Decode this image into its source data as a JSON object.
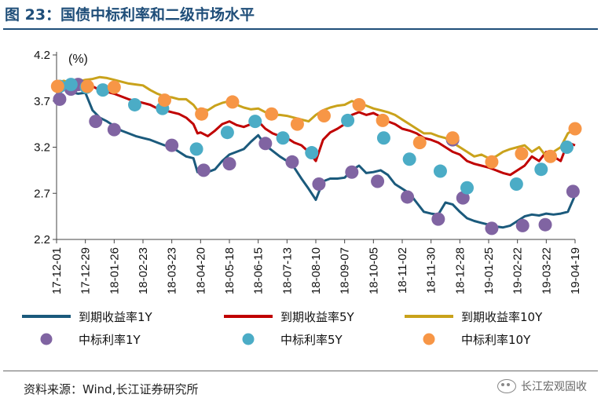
{
  "header": {
    "title": "图 23：国债中标利率和二级市场水平"
  },
  "footer": {
    "source": "资料来源：Wind,长江证券研究所",
    "watermark": "长江宏观固收"
  },
  "colors": {
    "y1": "#1b5a7c",
    "y5": "#c00000",
    "y10": "#c9a21b",
    "a1": "#8064a2",
    "a5": "#4bacc6",
    "a10": "#f79646"
  },
  "chart_data": {
    "type": "line",
    "unit": "(%)",
    "ylim": [
      2.2,
      4.2
    ],
    "yticks": [
      2.2,
      2.7,
      3.2,
      3.7,
      4.2
    ],
    "xlim": [
      "2017-12-01",
      "2019-04-19"
    ],
    "xticks": [
      "17-12-01",
      "17-12-29",
      "18-01-26",
      "18-02-23",
      "18-03-23",
      "18-04-20",
      "18-05-18",
      "18-06-15",
      "18-07-13",
      "18-08-10",
      "18-09-07",
      "18-10-05",
      "18-11-02",
      "18-11-30",
      "18-12-28",
      "19-01-25",
      "19-02-22",
      "19-03-22",
      "19-04-19"
    ],
    "grid": false,
    "legend_position": "bottom",
    "series": [
      {
        "name": "到期收益率1Y",
        "kind": "line",
        "color": "#1b5a7c",
        "x": [
          "2017-12-01",
          "2017-12-08",
          "2017-12-15",
          "2017-12-22",
          "2017-12-29",
          "2018-01-05",
          "2018-01-12",
          "2018-01-19",
          "2018-01-26",
          "2018-02-02",
          "2018-02-09",
          "2018-02-16",
          "2018-02-23",
          "2018-03-02",
          "2018-03-09",
          "2018-03-16",
          "2018-03-23",
          "2018-03-30",
          "2018-04-06",
          "2018-04-13",
          "2018-04-17",
          "2018-04-20",
          "2018-04-27",
          "2018-05-04",
          "2018-05-11",
          "2018-05-18",
          "2018-05-25",
          "2018-06-01",
          "2018-06-08",
          "2018-06-15",
          "2018-06-22",
          "2018-06-29",
          "2018-07-06",
          "2018-07-13",
          "2018-07-20",
          "2018-07-27",
          "2018-08-03",
          "2018-08-10",
          "2018-08-17",
          "2018-08-24",
          "2018-08-31",
          "2018-09-07",
          "2018-09-14",
          "2018-09-21",
          "2018-09-28",
          "2018-10-05",
          "2018-10-12",
          "2018-10-19",
          "2018-10-26",
          "2018-11-02",
          "2018-11-09",
          "2018-11-16",
          "2018-11-23",
          "2018-11-30",
          "2018-12-07",
          "2018-12-14",
          "2018-12-21",
          "2018-12-28",
          "2019-01-04",
          "2019-01-11",
          "2019-01-18",
          "2019-01-25",
          "2019-02-01",
          "2019-02-08",
          "2019-02-15",
          "2019-02-22",
          "2019-03-01",
          "2019-03-08",
          "2019-03-15",
          "2019-03-22",
          "2019-03-29",
          "2019-04-05",
          "2019-04-12",
          "2019-04-19"
        ],
        "values": [
          3.72,
          3.85,
          3.8,
          3.78,
          3.79,
          3.6,
          3.52,
          3.48,
          3.43,
          3.38,
          3.35,
          3.32,
          3.3,
          3.28,
          3.25,
          3.22,
          3.2,
          3.15,
          3.1,
          3.08,
          2.93,
          2.94,
          2.93,
          2.96,
          3.05,
          3.12,
          3.15,
          3.18,
          3.26,
          3.33,
          3.22,
          3.16,
          3.1,
          3.05,
          2.98,
          2.86,
          2.75,
          2.63,
          2.83,
          2.86,
          2.86,
          2.87,
          2.95,
          3.0,
          2.92,
          2.93,
          2.95,
          2.9,
          2.8,
          2.75,
          2.7,
          2.6,
          2.5,
          2.48,
          2.47,
          2.6,
          2.58,
          2.5,
          2.43,
          2.4,
          2.38,
          2.36,
          2.34,
          2.33,
          2.35,
          2.4,
          2.45,
          2.47,
          2.46,
          2.48,
          2.47,
          2.48,
          2.5,
          2.68
        ]
      },
      {
        "name": "到期收益率5Y",
        "kind": "line",
        "color": "#c00000",
        "x": [
          "2017-12-01",
          "2017-12-08",
          "2017-12-15",
          "2017-12-22",
          "2017-12-29",
          "2018-01-05",
          "2018-01-12",
          "2018-01-19",
          "2018-01-26",
          "2018-02-02",
          "2018-02-09",
          "2018-02-16",
          "2018-02-23",
          "2018-03-02",
          "2018-03-09",
          "2018-03-16",
          "2018-03-23",
          "2018-03-30",
          "2018-04-06",
          "2018-04-13",
          "2018-04-17",
          "2018-04-20",
          "2018-04-27",
          "2018-05-04",
          "2018-05-11",
          "2018-05-18",
          "2018-05-25",
          "2018-06-01",
          "2018-06-08",
          "2018-06-15",
          "2018-06-22",
          "2018-06-29",
          "2018-07-06",
          "2018-07-13",
          "2018-07-20",
          "2018-07-27",
          "2018-08-03",
          "2018-08-10",
          "2018-08-17",
          "2018-08-24",
          "2018-08-31",
          "2018-09-07",
          "2018-09-14",
          "2018-09-21",
          "2018-09-28",
          "2018-10-05",
          "2018-10-12",
          "2018-10-19",
          "2018-10-26",
          "2018-11-02",
          "2018-11-09",
          "2018-11-16",
          "2018-11-23",
          "2018-11-30",
          "2018-12-07",
          "2018-12-14",
          "2018-12-21",
          "2018-12-28",
          "2019-01-04",
          "2019-01-11",
          "2019-01-18",
          "2019-01-25",
          "2019-02-01",
          "2019-02-08",
          "2019-02-15",
          "2019-02-22",
          "2019-03-01",
          "2019-03-08",
          "2019-03-15",
          "2019-03-22",
          "2019-03-29",
          "2019-04-05",
          "2019-04-12",
          "2019-04-19"
        ],
        "values": [
          3.87,
          3.88,
          3.85,
          3.87,
          3.83,
          3.86,
          3.82,
          3.8,
          3.78,
          3.75,
          3.72,
          3.7,
          3.68,
          3.66,
          3.62,
          3.6,
          3.58,
          3.56,
          3.52,
          3.45,
          3.35,
          3.36,
          3.32,
          3.38,
          3.45,
          3.48,
          3.44,
          3.42,
          3.45,
          3.48,
          3.4,
          3.35,
          3.32,
          3.3,
          3.25,
          3.22,
          3.15,
          3.05,
          3.28,
          3.36,
          3.4,
          3.45,
          3.55,
          3.58,
          3.55,
          3.57,
          3.53,
          3.48,
          3.45,
          3.4,
          3.38,
          3.35,
          3.3,
          3.28,
          3.25,
          3.2,
          3.15,
          3.12,
          3.05,
          3.02,
          3.0,
          2.98,
          2.95,
          2.92,
          2.9,
          2.95,
          3.0,
          3.1,
          3.05,
          3.15,
          3.1,
          3.05,
          3.25,
          3.22
        ]
      },
      {
        "name": "到期收益率10Y",
        "kind": "line",
        "color": "#c9a21b",
        "x": [
          "2017-12-01",
          "2017-12-08",
          "2017-12-15",
          "2017-12-22",
          "2017-12-29",
          "2018-01-05",
          "2018-01-12",
          "2018-01-19",
          "2018-01-26",
          "2018-02-02",
          "2018-02-09",
          "2018-02-16",
          "2018-02-23",
          "2018-03-02",
          "2018-03-09",
          "2018-03-16",
          "2018-03-23",
          "2018-03-30",
          "2018-04-06",
          "2018-04-13",
          "2018-04-17",
          "2018-04-20",
          "2018-04-27",
          "2018-05-04",
          "2018-05-11",
          "2018-05-18",
          "2018-05-25",
          "2018-06-01",
          "2018-06-08",
          "2018-06-15",
          "2018-06-22",
          "2018-06-29",
          "2018-07-06",
          "2018-07-13",
          "2018-07-20",
          "2018-07-27",
          "2018-08-03",
          "2018-08-10",
          "2018-08-17",
          "2018-08-24",
          "2018-08-31",
          "2018-09-07",
          "2018-09-14",
          "2018-09-21",
          "2018-09-28",
          "2018-10-05",
          "2018-10-12",
          "2018-10-19",
          "2018-10-26",
          "2018-11-02",
          "2018-11-09",
          "2018-11-16",
          "2018-11-23",
          "2018-11-30",
          "2018-12-07",
          "2018-12-14",
          "2018-12-21",
          "2018-12-28",
          "2019-01-04",
          "2019-01-11",
          "2019-01-18",
          "2019-01-25",
          "2019-02-01",
          "2019-02-08",
          "2019-02-15",
          "2019-02-22",
          "2019-03-01",
          "2019-03-08",
          "2019-03-15",
          "2019-03-22",
          "2019-03-29",
          "2019-04-05",
          "2019-04-12",
          "2019-04-19"
        ],
        "values": [
          3.9,
          3.92,
          3.9,
          3.91,
          3.93,
          3.94,
          3.96,
          3.95,
          3.93,
          3.91,
          3.89,
          3.88,
          3.87,
          3.82,
          3.78,
          3.75,
          3.74,
          3.72,
          3.72,
          3.66,
          3.6,
          3.62,
          3.6,
          3.65,
          3.68,
          3.7,
          3.66,
          3.63,
          3.61,
          3.62,
          3.58,
          3.55,
          3.55,
          3.54,
          3.52,
          3.5,
          3.48,
          3.55,
          3.6,
          3.63,
          3.65,
          3.66,
          3.7,
          3.68,
          3.65,
          3.62,
          3.6,
          3.58,
          3.55,
          3.5,
          3.45,
          3.4,
          3.35,
          3.35,
          3.32,
          3.3,
          3.25,
          3.2,
          3.15,
          3.1,
          3.12,
          3.08,
          3.1,
          3.15,
          3.18,
          3.2,
          3.22,
          3.15,
          3.2,
          3.1,
          3.15,
          3.2,
          3.35,
          3.4
        ]
      },
      {
        "name": "中标利率1Y",
        "kind": "scatter",
        "color": "#8064a2",
        "x": [
          "2017-12-04",
          "2017-12-15",
          "2017-12-22",
          "2018-01-08",
          "2018-01-26",
          "2018-03-23",
          "2018-04-23",
          "2018-05-18",
          "2018-06-22",
          "2018-07-18",
          "2018-08-13",
          "2018-09-14",
          "2018-10-09",
          "2018-11-07",
          "2018-12-07",
          "2018-12-21",
          "2018-12-31",
          "2019-01-28",
          "2019-02-27",
          "2019-03-21",
          "2019-04-17"
        ],
        "values": [
          3.72,
          3.83,
          3.88,
          3.48,
          3.39,
          3.22,
          2.95,
          3.02,
          3.24,
          3.04,
          2.8,
          2.93,
          2.83,
          2.66,
          2.42,
          3.28,
          2.65,
          2.32,
          2.35,
          2.36,
          2.72
        ]
      },
      {
        "name": "中标利率5Y",
        "kind": "scatter",
        "color": "#4bacc6",
        "x": [
          "2017-12-04",
          "2017-12-15",
          "2017-12-30",
          "2018-01-15",
          "2018-02-15",
          "2018-03-14",
          "2018-04-16",
          "2018-05-16",
          "2018-06-12",
          "2018-07-09",
          "2018-08-06",
          "2018-09-10",
          "2018-10-15",
          "2018-11-09",
          "2018-12-09",
          "2019-01-04",
          "2019-02-21",
          "2019-03-17",
          "2019-04-11"
        ],
        "values": [
          3.86,
          3.88,
          3.85,
          3.82,
          3.66,
          3.62,
          3.18,
          3.36,
          3.48,
          3.3,
          3.14,
          3.49,
          3.3,
          3.07,
          2.94,
          2.76,
          2.8,
          2.96,
          3.2
        ]
      },
      {
        "name": "中标利率10Y",
        "kind": "scatter",
        "color": "#f79646",
        "x": [
          "2017-12-02",
          "2017-12-31",
          "2018-01-26",
          "2018-03-16",
          "2018-04-21",
          "2018-05-21",
          "2018-06-28",
          "2018-07-23",
          "2018-08-18",
          "2018-09-21",
          "2018-10-14",
          "2018-11-19",
          "2018-12-21",
          "2019-01-28",
          "2019-02-26",
          "2019-03-26",
          "2019-04-19"
        ],
        "values": [
          3.86,
          3.86,
          3.85,
          3.71,
          3.56,
          3.69,
          3.56,
          3.45,
          3.54,
          3.66,
          3.49,
          3.25,
          3.3,
          3.04,
          3.13,
          3.1,
          3.4
        ]
      }
    ]
  }
}
